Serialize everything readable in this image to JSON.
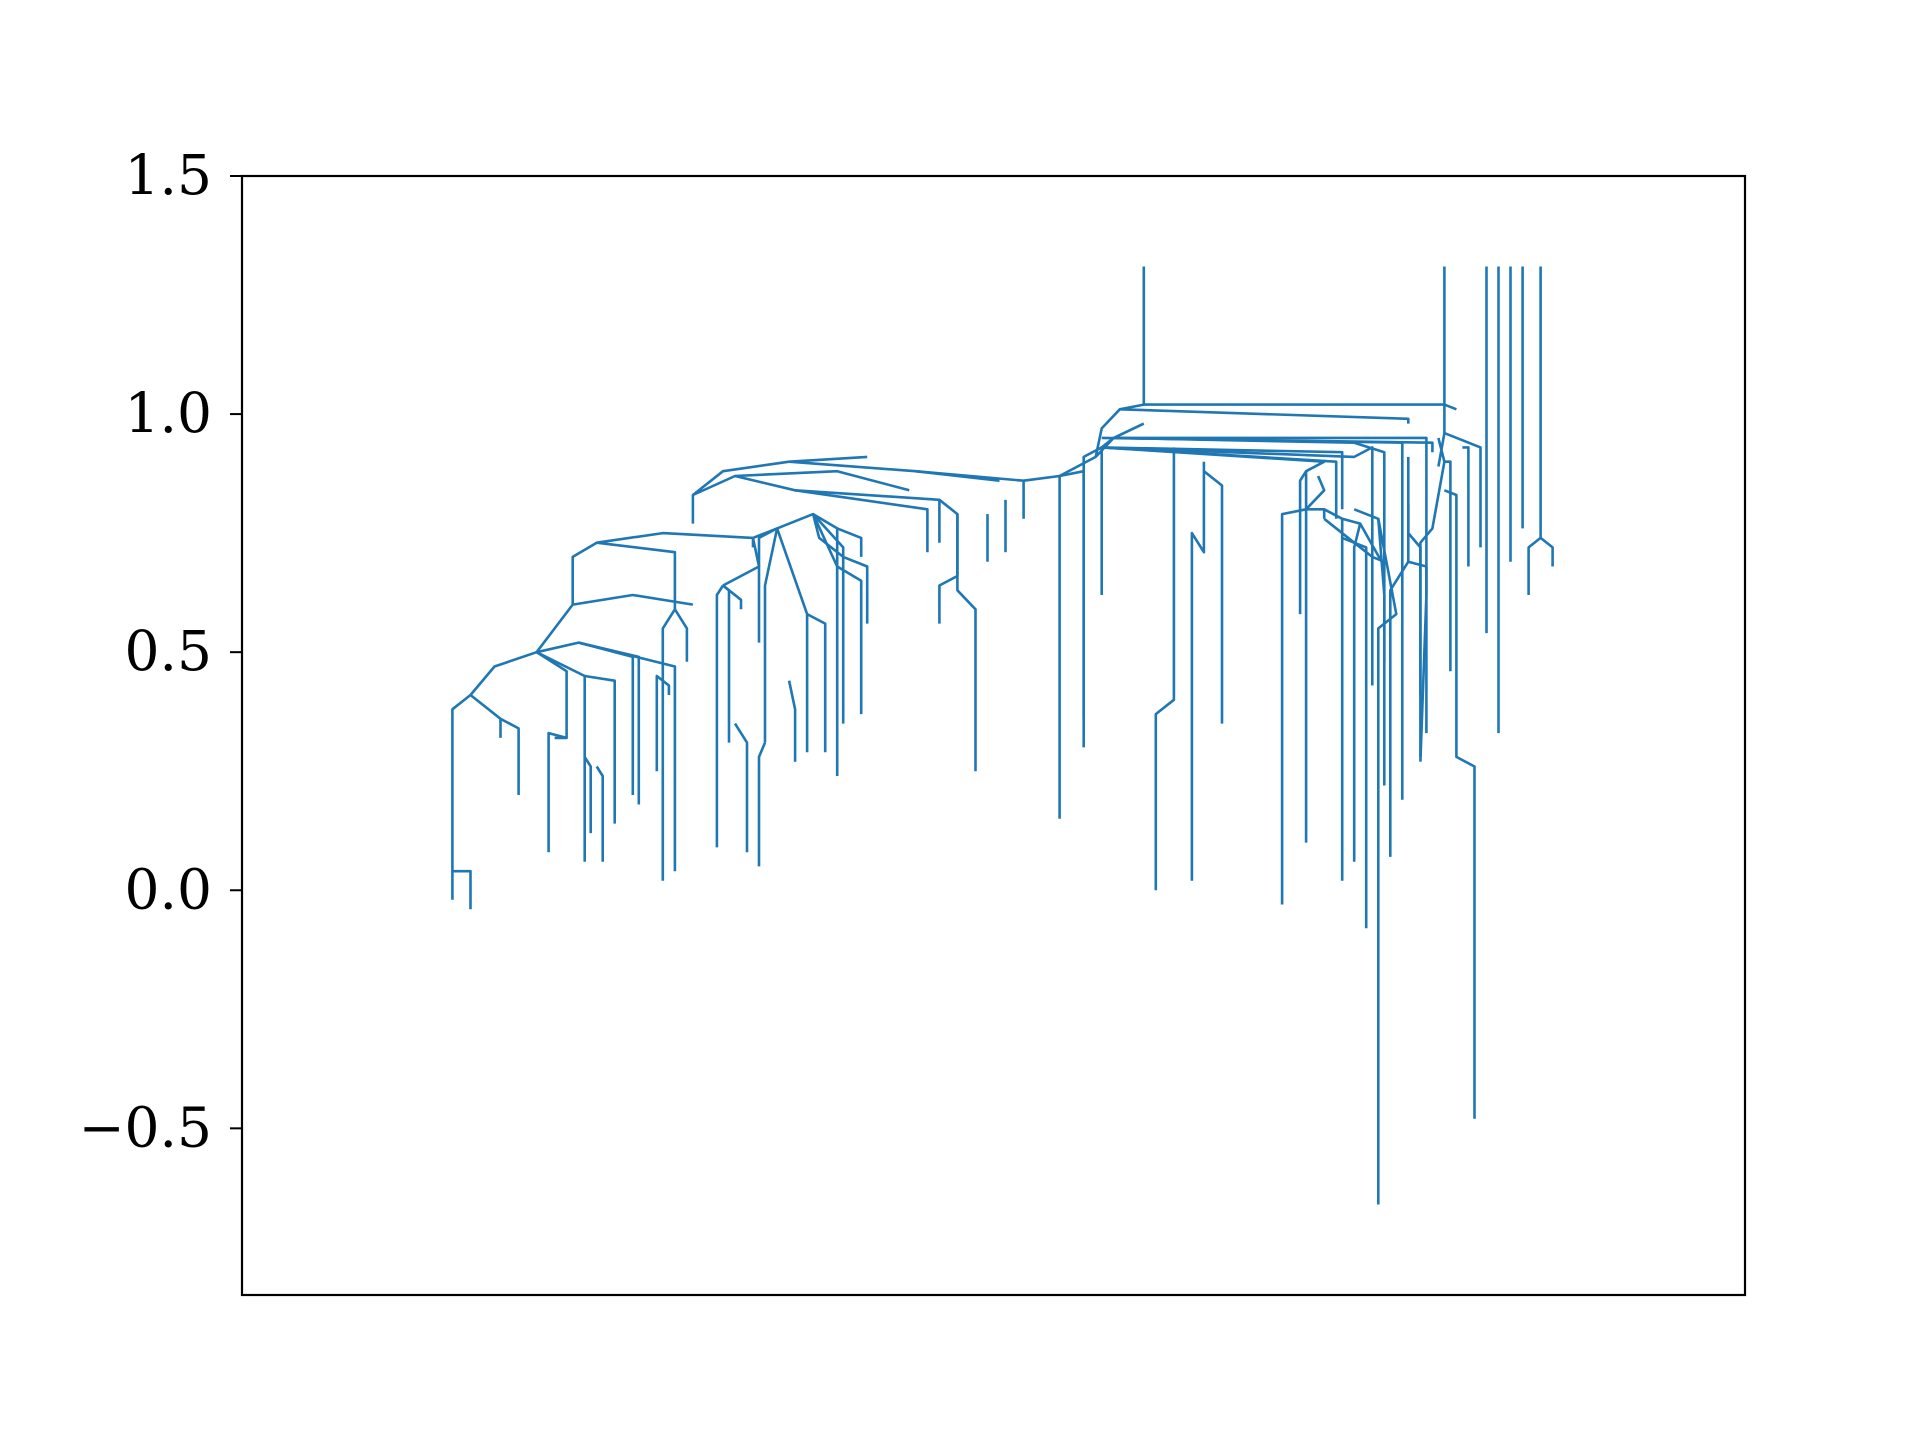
{
  "colors": {
    "series": "#1f77b4",
    "axes": "#000000",
    "background": "#ffffff"
  },
  "chart_data": {
    "type": "line",
    "title": "",
    "xlabel": "",
    "ylabel": "",
    "ylim": [
      -0.85,
      1.5
    ],
    "yticks": [
      {
        "value": 1.5,
        "label": "1.5"
      },
      {
        "value": 1.0,
        "label": "1.0"
      },
      {
        "value": 0.5,
        "label": "0.5"
      },
      {
        "value": 0.0,
        "label": "0.0"
      },
      {
        "value": -0.5,
        "label": "−0.5"
      }
    ],
    "grid": false,
    "legend": "none",
    "xticks_visible": false,
    "segments": [
      [
        [
          3.5,
          -0.02
        ],
        [
          3.5,
          0.04
        ],
        [
          3.8,
          0.04
        ],
        [
          3.8,
          -0.04
        ]
      ],
      [
        [
          3.5,
          0.04
        ],
        [
          3.5,
          0.38
        ],
        [
          3.8,
          0.41
        ]
      ],
      [
        [
          3.8,
          0.41
        ],
        [
          4.3,
          0.36
        ],
        [
          4.3,
          0.32
        ]
      ],
      [
        [
          4.3,
          0.36
        ],
        [
          4.6,
          0.34
        ],
        [
          4.6,
          0.2
        ]
      ],
      [
        [
          3.8,
          0.41
        ],
        [
          4.2,
          0.47
        ],
        [
          4.9,
          0.5
        ]
      ],
      [
        [
          4.9,
          0.5
        ],
        [
          5.4,
          0.46
        ],
        [
          5.4,
          0.32
        ],
        [
          5.2,
          0.32
        ]
      ],
      [
        [
          4.9,
          0.5
        ],
        [
          5.7,
          0.45
        ],
        [
          5.7,
          0.06
        ]
      ],
      [
        [
          5.4,
          0.32
        ],
        [
          5.1,
          0.33
        ],
        [
          5.1,
          0.08
        ]
      ],
      [
        [
          5.7,
          0.45
        ],
        [
          6.2,
          0.44
        ],
        [
          6.2,
          0.14
        ]
      ],
      [
        [
          4.9,
          0.5
        ],
        [
          5.6,
          0.52
        ],
        [
          6.5,
          0.49
        ],
        [
          6.5,
          0.2
        ]
      ],
      [
        [
          5.6,
          0.52
        ],
        [
          6.6,
          0.49
        ],
        [
          6.6,
          0.18
        ]
      ],
      [
        [
          5.6,
          0.52
        ],
        [
          7.2,
          0.47
        ],
        [
          7.2,
          0.04
        ]
      ],
      [
        [
          7.1,
          0.41
        ],
        [
          7.1,
          0.43
        ],
        [
          6.9,
          0.45
        ],
        [
          6.9,
          0.25
        ]
      ],
      [
        [
          5.7,
          0.28
        ],
        [
          5.8,
          0.26
        ],
        [
          5.8,
          0.12
        ]
      ],
      [
        [
          5.9,
          0.26
        ],
        [
          6.0,
          0.24
        ],
        [
          6.0,
          0.06
        ]
      ],
      [
        [
          4.9,
          0.5
        ],
        [
          5.5,
          0.6
        ],
        [
          6.5,
          0.62
        ],
        [
          7.5,
          0.6
        ]
      ],
      [
        [
          5.5,
          0.6
        ],
        [
          5.5,
          0.7
        ],
        [
          5.9,
          0.73
        ],
        [
          7.2,
          0.71
        ],
        [
          7.2,
          0.59
        ]
      ],
      [
        [
          7.2,
          0.59
        ],
        [
          7.0,
          0.55
        ],
        [
          7.0,
          0.02
        ]
      ],
      [
        [
          7.2,
          0.59
        ],
        [
          7.4,
          0.55
        ],
        [
          7.4,
          0.48
        ]
      ],
      [
        [
          5.9,
          0.73
        ],
        [
          7.0,
          0.75
        ],
        [
          8.5,
          0.74
        ],
        [
          8.5,
          0.72
        ]
      ],
      [
        [
          8.5,
          0.74
        ],
        [
          8.9,
          0.76
        ],
        [
          9.5,
          0.79
        ],
        [
          9.9,
          0.76
        ],
        [
          9.9,
          0.61
        ]
      ],
      [
        [
          9.9,
          0.76
        ],
        [
          10.3,
          0.74
        ],
        [
          10.3,
          0.7
        ]
      ],
      [
        [
          8.9,
          0.76
        ],
        [
          8.6,
          0.74
        ],
        [
          8.6,
          0.52
        ]
      ],
      [
        [
          8.5,
          0.74
        ],
        [
          8.6,
          0.68
        ],
        [
          8.0,
          0.64
        ]
      ],
      [
        [
          8.0,
          0.64
        ],
        [
          7.9,
          0.62
        ],
        [
          7.9,
          0.09
        ]
      ],
      [
        [
          8.0,
          0.64
        ],
        [
          8.3,
          0.61
        ],
        [
          8.3,
          0.59
        ]
      ],
      [
        [
          8.0,
          0.64
        ],
        [
          8.1,
          0.63
        ],
        [
          8.1,
          0.31
        ]
      ],
      [
        [
          8.9,
          0.76
        ],
        [
          8.7,
          0.64
        ],
        [
          8.7,
          0.31
        ]
      ],
      [
        [
          8.9,
          0.76
        ],
        [
          9.4,
          0.58
        ],
        [
          9.4,
          0.29
        ]
      ],
      [
        [
          9.4,
          0.58
        ],
        [
          9.7,
          0.56
        ],
        [
          9.7,
          0.29
        ]
      ],
      [
        [
          9.5,
          0.79
        ],
        [
          9.9,
          0.68
        ],
        [
          9.9,
          0.24
        ]
      ],
      [
        [
          9.9,
          0.68
        ],
        [
          10.3,
          0.65
        ],
        [
          10.3,
          0.37
        ]
      ],
      [
        [
          9.5,
          0.79
        ],
        [
          10.0,
          0.72
        ],
        [
          10.0,
          0.35
        ]
      ],
      [
        [
          8.2,
          0.35
        ],
        [
          8.4,
          0.31
        ],
        [
          8.4,
          0.08
        ]
      ],
      [
        [
          8.7,
          0.31
        ],
        [
          8.6,
          0.28
        ],
        [
          8.6,
          0.05
        ]
      ],
      [
        [
          9.1,
          0.44
        ],
        [
          9.2,
          0.38
        ],
        [
          9.2,
          0.27
        ]
      ],
      [
        [
          9.5,
          0.79
        ],
        [
          9.6,
          0.74
        ],
        [
          10.0,
          0.7
        ],
        [
          10.4,
          0.68
        ],
        [
          10.4,
          0.56
        ]
      ],
      [
        [
          7.5,
          0.77
        ],
        [
          7.5,
          0.83
        ],
        [
          8.2,
          0.87
        ],
        [
          9.9,
          0.88
        ],
        [
          11.1,
          0.84
        ]
      ],
      [
        [
          8.2,
          0.87
        ],
        [
          9.2,
          0.84
        ],
        [
          11.6,
          0.82
        ],
        [
          11.6,
          0.73
        ]
      ],
      [
        [
          9.2,
          0.84
        ],
        [
          11.4,
          0.8
        ],
        [
          11.4,
          0.71
        ]
      ],
      [
        [
          11.6,
          0.82
        ],
        [
          11.9,
          0.79
        ],
        [
          11.9,
          0.66
        ],
        [
          11.6,
          0.64
        ],
        [
          11.6,
          0.56
        ]
      ],
      [
        [
          11.9,
          0.79
        ],
        [
          11.9,
          0.63
        ],
        [
          12.2,
          0.59
        ],
        [
          12.2,
          0.25
        ]
      ],
      [
        [
          12.4,
          0.79
        ],
        [
          12.4,
          0.69
        ]
      ],
      [
        [
          12.7,
          0.82
        ],
        [
          12.7,
          0.71
        ]
      ],
      [
        [
          7.5,
          0.83
        ],
        [
          8.0,
          0.88
        ],
        [
          9.1,
          0.9
        ],
        [
          10.4,
          0.91
        ]
      ],
      [
        [
          9.1,
          0.9
        ],
        [
          11.2,
          0.88
        ],
        [
          12.6,
          0.86
        ]
      ],
      [
        [
          11.2,
          0.88
        ],
        [
          13.0,
          0.86
        ],
        [
          13.0,
          0.78
        ]
      ],
      [
        [
          13.0,
          0.86
        ],
        [
          13.6,
          0.87
        ],
        [
          13.6,
          0.15
        ]
      ],
      [
        [
          13.6,
          0.87
        ],
        [
          14.0,
          0.88
        ],
        [
          14.0,
          0.36
        ]
      ],
      [
        [
          13.6,
          0.87
        ],
        [
          14.2,
          0.91
        ],
        [
          14.5,
          0.95
        ],
        [
          15.0,
          0.98
        ]
      ],
      [
        [
          14.2,
          0.91
        ],
        [
          14.3,
          0.97
        ],
        [
          14.6,
          1.01
        ],
        [
          15.0,
          1.02
        ],
        [
          20.0,
          1.02
        ],
        [
          20.2,
          1.01
        ]
      ],
      [
        [
          15.0,
          1.02
        ],
        [
          15.0,
          1.31
        ]
      ],
      [
        [
          14.6,
          1.01
        ],
        [
          19.4,
          0.99
        ],
        [
          19.4,
          0.98
        ]
      ],
      [
        [
          14.5,
          0.95
        ],
        [
          18.5,
          0.94
        ],
        [
          19.0,
          0.92
        ],
        [
          19.0,
          0.48
        ]
      ],
      [
        [
          14.5,
          0.95
        ],
        [
          14.3,
          0.93
        ],
        [
          14.3,
          0.62
        ]
      ],
      [
        [
          14.3,
          0.93
        ],
        [
          18.5,
          0.91
        ],
        [
          18.8,
          0.93
        ],
        [
          18.8,
          0.43
        ]
      ],
      [
        [
          14.3,
          0.93
        ],
        [
          18.2,
          0.9
        ],
        [
          18.2,
          0.78
        ]
      ],
      [
        [
          14.3,
          0.93
        ],
        [
          14.0,
          0.91
        ],
        [
          14.0,
          0.3
        ]
      ],
      [
        [
          14.3,
          0.93
        ],
        [
          18.0,
          0.9
        ],
        [
          17.7,
          0.88
        ],
        [
          17.7,
          0.1
        ]
      ],
      [
        [
          14.3,
          0.93
        ],
        [
          18.3,
          0.92
        ],
        [
          18.3,
          0.8
        ]
      ],
      [
        [
          14.5,
          0.95
        ],
        [
          19.3,
          0.94
        ],
        [
          19.3,
          0.19
        ]
      ],
      [
        [
          14.5,
          0.95
        ],
        [
          19.7,
          0.95
        ],
        [
          19.7,
          0.33
        ]
      ],
      [
        [
          14.3,
          0.95
        ],
        [
          19.8,
          0.94
        ],
        [
          19.8,
          0.92
        ]
      ],
      [
        [
          17.7,
          0.88
        ],
        [
          17.6,
          0.86
        ],
        [
          17.6,
          0.58
        ]
      ],
      [
        [
          17.9,
          0.87
        ],
        [
          18.0,
          0.84
        ],
        [
          17.7,
          0.8
        ],
        [
          17.3,
          0.79
        ],
        [
          17.3,
          -0.03
        ]
      ],
      [
        [
          17.7,
          0.8
        ],
        [
          18.0,
          0.8
        ],
        [
          18.0,
          0.78
        ]
      ],
      [
        [
          18.0,
          0.8
        ],
        [
          18.3,
          0.78
        ],
        [
          18.3,
          0.02
        ]
      ],
      [
        [
          16.0,
          0.9
        ],
        [
          16.0,
          0.71
        ],
        [
          15.8,
          0.75
        ],
        [
          15.8,
          0.02
        ]
      ],
      [
        [
          16.0,
          0.88
        ],
        [
          16.3,
          0.85
        ],
        [
          16.3,
          0.35
        ]
      ],
      [
        [
          15.5,
          0.93
        ],
        [
          15.5,
          0.4
        ],
        [
          15.2,
          0.37
        ],
        [
          15.2,
          0.0
        ]
      ],
      [
        [
          18.0,
          0.78
        ],
        [
          18.5,
          0.73
        ],
        [
          18.8,
          0.7
        ],
        [
          19.0,
          0.69
        ]
      ],
      [
        [
          18.3,
          0.78
        ],
        [
          18.6,
          0.77
        ],
        [
          19.0,
          0.68
        ]
      ],
      [
        [
          18.6,
          0.77
        ],
        [
          18.5,
          0.72
        ],
        [
          18.5,
          0.06
        ]
      ],
      [
        [
          18.3,
          0.74
        ],
        [
          18.7,
          0.72
        ],
        [
          18.7,
          -0.08
        ]
      ],
      [
        [
          18.5,
          0.8
        ],
        [
          18.9,
          0.78
        ],
        [
          19.2,
          0.58
        ],
        [
          18.9,
          0.55
        ],
        [
          18.9,
          -0.66
        ]
      ],
      [
        [
          18.9,
          0.78
        ],
        [
          19.0,
          0.62
        ],
        [
          19.0,
          0.22
        ]
      ],
      [
        [
          19.4,
          0.91
        ],
        [
          19.4,
          0.75
        ],
        [
          19.6,
          0.72
        ],
        [
          19.6,
          0.41
        ]
      ],
      [
        [
          19.9,
          0.95
        ],
        [
          20.0,
          0.9
        ],
        [
          20.1,
          0.9
        ],
        [
          20.1,
          0.46
        ]
      ],
      [
        [
          20.3,
          0.93
        ],
        [
          20.4,
          0.93
        ],
        [
          20.4,
          0.68
        ]
      ],
      [
        [
          20.0,
          0.9
        ],
        [
          19.8,
          0.76
        ],
        [
          19.6,
          0.73
        ],
        [
          19.6,
          0.28
        ]
      ],
      [
        [
          20.0,
          0.84
        ],
        [
          20.2,
          0.83
        ],
        [
          20.2,
          0.28
        ],
        [
          20.5,
          0.26
        ],
        [
          20.5,
          -0.48
        ]
      ],
      [
        [
          19.4,
          0.81
        ],
        [
          19.4,
          0.69
        ],
        [
          19.7,
          0.68
        ],
        [
          19.7,
          0.62
        ],
        [
          19.6,
          0.27
        ]
      ],
      [
        [
          19.4,
          0.69
        ],
        [
          19.1,
          0.63
        ],
        [
          19.1,
          0.07
        ]
      ],
      [
        [
          20.0,
          1.31
        ],
        [
          20.0,
          0.96
        ],
        [
          20.6,
          0.93
        ],
        [
          20.6,
          0.72
        ]
      ],
      [
        [
          20.0,
          0.96
        ],
        [
          19.9,
          0.89
        ]
      ],
      [
        [
          20.7,
          1.31
        ],
        [
          20.7,
          0.54
        ]
      ],
      [
        [
          20.9,
          1.31
        ],
        [
          20.9,
          0.33
        ]
      ],
      [
        [
          21.1,
          1.31
        ],
        [
          21.1,
          0.69
        ]
      ],
      [
        [
          21.3,
          1.31
        ],
        [
          21.3,
          0.76
        ]
      ],
      [
        [
          21.6,
          1.31
        ],
        [
          21.6,
          0.74
        ],
        [
          21.8,
          0.72
        ],
        [
          21.8,
          0.68
        ]
      ],
      [
        [
          21.6,
          0.74
        ],
        [
          21.4,
          0.72
        ],
        [
          21.4,
          0.62
        ]
      ]
    ]
  }
}
